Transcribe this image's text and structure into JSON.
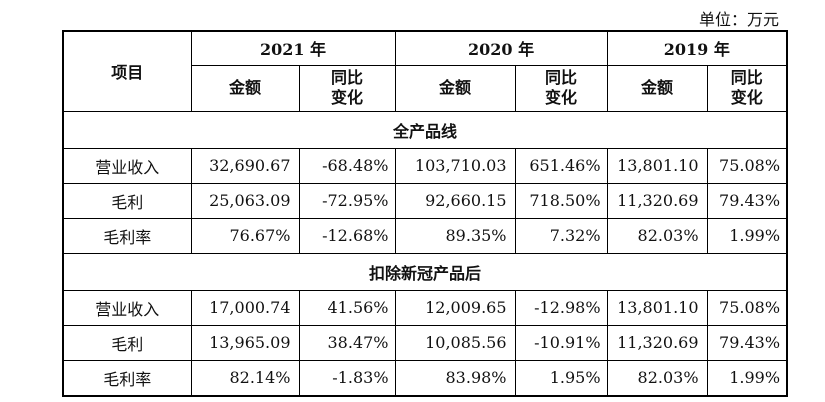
{
  "unit_label": "单位：万元",
  "header": {
    "item": "项目",
    "years": [
      "2021 年",
      "2020 年",
      "2019 年"
    ],
    "amount": "金额",
    "change_line1": "同比",
    "change_line2": "变化"
  },
  "sections": [
    {
      "title": "全产品线",
      "rows": [
        {
          "label": "营业收入",
          "cells": [
            "32,690.67",
            "-68.48%",
            "103,710.03",
            "651.46%",
            "13,801.10",
            "75.08%"
          ]
        },
        {
          "label": "毛利",
          "cells": [
            "25,063.09",
            "-72.95%",
            "92,660.15",
            "718.50%",
            "11,320.69",
            "79.43%"
          ]
        },
        {
          "label": "毛利率",
          "cells": [
            "76.67%",
            "-12.68%",
            "89.35%",
            "7.32%",
            "82.03%",
            "1.99%"
          ]
        }
      ]
    },
    {
      "title": "扣除新冠产品后",
      "rows": [
        {
          "label": "营业收入",
          "cells": [
            "17,000.74",
            "41.56%",
            "12,009.65",
            "-12.98%",
            "13,801.10",
            "75.08%"
          ]
        },
        {
          "label": "毛利",
          "cells": [
            "13,965.09",
            "38.47%",
            "10,085.56",
            "-10.91%",
            "11,320.69",
            "79.43%"
          ]
        },
        {
          "label": "毛利率",
          "cells": [
            "82.14%",
            "-1.83%",
            "83.98%",
            "1.95%",
            "82.03%",
            "1.99%"
          ]
        }
      ]
    }
  ]
}
